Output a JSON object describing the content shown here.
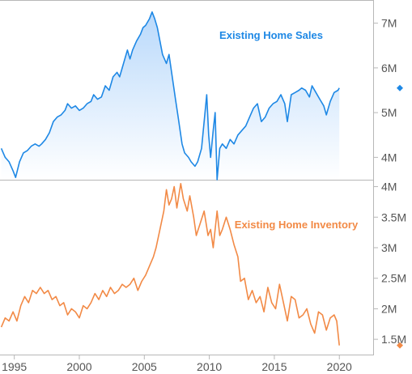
{
  "colors": {
    "sales": "#1e88e5",
    "sales_fill_top": "#b9d9fb",
    "sales_fill_bottom": "#ffffff",
    "inventory": "#f28a46",
    "grid": "#b7b7b7",
    "axis_text": "#555555"
  },
  "chart_data": [
    {
      "type": "area",
      "title": "Existing Home Sales",
      "series": [
        {
          "name": "Existing Home Sales"
        }
      ],
      "y_tick_labels": [
        "4M",
        "5M",
        "6M",
        "7M"
      ],
      "y_ticks": [
        4.0,
        5.0,
        6.0,
        7.0
      ],
      "ylim": [
        3.5,
        7.5
      ],
      "last_value_marker": 5.55,
      "points": [
        [
          1994.0,
          4.2
        ],
        [
          1994.3,
          4.0
        ],
        [
          1994.6,
          3.9
        ],
        [
          1994.9,
          3.7
        ],
        [
          1995.1,
          3.55
        ],
        [
          1995.4,
          3.9
        ],
        [
          1995.7,
          4.1
        ],
        [
          1996.0,
          4.15
        ],
        [
          1996.3,
          4.25
        ],
        [
          1996.6,
          4.3
        ],
        [
          1996.9,
          4.25
        ],
        [
          1997.1,
          4.3
        ],
        [
          1997.4,
          4.4
        ],
        [
          1997.7,
          4.55
        ],
        [
          1998.0,
          4.8
        ],
        [
          1998.3,
          4.9
        ],
        [
          1998.6,
          4.95
        ],
        [
          1998.9,
          5.05
        ],
        [
          1999.1,
          5.2
        ],
        [
          1999.4,
          5.1
        ],
        [
          1999.7,
          5.15
        ],
        [
          2000.0,
          5.05
        ],
        [
          2000.3,
          5.1
        ],
        [
          2000.6,
          5.2
        ],
        [
          2000.9,
          5.25
        ],
        [
          2001.1,
          5.4
        ],
        [
          2001.4,
          5.3
        ],
        [
          2001.7,
          5.35
        ],
        [
          2002.0,
          5.6
        ],
        [
          2002.3,
          5.5
        ],
        [
          2002.6,
          5.8
        ],
        [
          2002.9,
          5.9
        ],
        [
          2003.1,
          5.8
        ],
        [
          2003.4,
          6.1
        ],
        [
          2003.7,
          6.4
        ],
        [
          2003.9,
          6.2
        ],
        [
          2004.1,
          6.4
        ],
        [
          2004.4,
          6.6
        ],
        [
          2004.7,
          6.75
        ],
        [
          2004.9,
          6.9
        ],
        [
          2005.1,
          6.95
        ],
        [
          2005.4,
          7.1
        ],
        [
          2005.6,
          7.25
        ],
        [
          2005.8,
          7.1
        ],
        [
          2006.0,
          6.9
        ],
        [
          2006.2,
          6.6
        ],
        [
          2006.4,
          6.3
        ],
        [
          2006.7,
          6.1
        ],
        [
          2006.9,
          6.3
        ],
        [
          2007.1,
          5.9
        ],
        [
          2007.4,
          5.3
        ],
        [
          2007.6,
          4.9
        ],
        [
          2007.9,
          4.3
        ],
        [
          2008.1,
          4.1
        ],
        [
          2008.4,
          4.0
        ],
        [
          2008.6,
          3.9
        ],
        [
          2008.9,
          3.8
        ],
        [
          2009.1,
          3.9
        ],
        [
          2009.4,
          4.2
        ],
        [
          2009.6,
          4.8
        ],
        [
          2009.8,
          5.4
        ],
        [
          2009.95,
          4.5
        ],
        [
          2010.1,
          4.0
        ],
        [
          2010.3,
          4.6
        ],
        [
          2010.45,
          5.0
        ],
        [
          2010.6,
          3.5
        ],
        [
          2010.8,
          4.2
        ],
        [
          2011.0,
          4.3
        ],
        [
          2011.3,
          4.2
        ],
        [
          2011.6,
          4.4
        ],
        [
          2011.9,
          4.3
        ],
        [
          2012.2,
          4.5
        ],
        [
          2012.5,
          4.6
        ],
        [
          2012.8,
          4.7
        ],
        [
          2013.1,
          4.9
        ],
        [
          2013.4,
          5.1
        ],
        [
          2013.7,
          5.2
        ],
        [
          2014.0,
          4.8
        ],
        [
          2014.3,
          4.9
        ],
        [
          2014.6,
          5.1
        ],
        [
          2014.9,
          5.2
        ],
        [
          2015.2,
          5.25
        ],
        [
          2015.5,
          5.4
        ],
        [
          2015.8,
          5.2
        ],
        [
          2016.0,
          4.8
        ],
        [
          2016.3,
          5.4
        ],
        [
          2016.6,
          5.45
        ],
        [
          2016.9,
          5.5
        ],
        [
          2017.1,
          5.55
        ],
        [
          2017.4,
          5.5
        ],
        [
          2017.7,
          5.35
        ],
        [
          2017.9,
          5.6
        ],
        [
          2018.2,
          5.45
        ],
        [
          2018.5,
          5.3
        ],
        [
          2018.8,
          5.15
        ],
        [
          2019.0,
          4.95
        ],
        [
          2019.3,
          5.25
        ],
        [
          2019.6,
          5.45
        ],
        [
          2019.9,
          5.5
        ],
        [
          2020.0,
          5.55
        ]
      ]
    },
    {
      "type": "line",
      "title": "Existing Home Inventory",
      "series": [
        {
          "name": "Existing Home Inventory"
        }
      ],
      "y_tick_labels": [
        "1.5M",
        "2M",
        "2.5M",
        "3M",
        "3.5M",
        "4M"
      ],
      "y_ticks": [
        1.5,
        2.0,
        2.5,
        3.0,
        3.5,
        4.0
      ],
      "ylim": [
        1.25,
        4.1
      ],
      "last_value_marker": 1.4,
      "points": [
        [
          1994.0,
          1.7
        ],
        [
          1994.3,
          1.85
        ],
        [
          1994.6,
          1.8
        ],
        [
          1994.9,
          1.95
        ],
        [
          1995.2,
          1.8
        ],
        [
          1995.5,
          2.05
        ],
        [
          1995.8,
          2.2
        ],
        [
          1996.1,
          2.1
        ],
        [
          1996.4,
          2.3
        ],
        [
          1996.7,
          2.25
        ],
        [
          1997.0,
          2.35
        ],
        [
          1997.3,
          2.25
        ],
        [
          1997.6,
          2.3
        ],
        [
          1997.9,
          2.15
        ],
        [
          1998.2,
          2.2
        ],
        [
          1998.5,
          2.05
        ],
        [
          1998.8,
          2.1
        ],
        [
          1999.1,
          1.9
        ],
        [
          1999.4,
          2.0
        ],
        [
          1999.7,
          1.95
        ],
        [
          2000.0,
          1.85
        ],
        [
          2000.3,
          2.05
        ],
        [
          2000.6,
          2.0
        ],
        [
          2000.9,
          2.1
        ],
        [
          2001.2,
          2.25
        ],
        [
          2001.5,
          2.15
        ],
        [
          2001.8,
          2.3
        ],
        [
          2002.1,
          2.2
        ],
        [
          2002.4,
          2.35
        ],
        [
          2002.7,
          2.25
        ],
        [
          2003.0,
          2.3
        ],
        [
          2003.3,
          2.4
        ],
        [
          2003.6,
          2.35
        ],
        [
          2003.9,
          2.4
        ],
        [
          2004.2,
          2.5
        ],
        [
          2004.5,
          2.3
        ],
        [
          2004.8,
          2.45
        ],
        [
          2005.1,
          2.55
        ],
        [
          2005.4,
          2.7
        ],
        [
          2005.7,
          2.85
        ],
        [
          2005.9,
          3.0
        ],
        [
          2006.2,
          3.3
        ],
        [
          2006.5,
          3.6
        ],
        [
          2006.7,
          3.95
        ],
        [
          2006.9,
          3.7
        ],
        [
          2007.1,
          3.8
        ],
        [
          2007.3,
          4.0
        ],
        [
          2007.5,
          3.65
        ],
        [
          2007.8,
          4.05
        ],
        [
          2008.0,
          3.8
        ],
        [
          2008.3,
          3.6
        ],
        [
          2008.5,
          3.85
        ],
        [
          2008.8,
          3.5
        ],
        [
          2009.0,
          3.2
        ],
        [
          2009.3,
          3.4
        ],
        [
          2009.6,
          3.6
        ],
        [
          2009.9,
          3.2
        ],
        [
          2010.1,
          3.3
        ],
        [
          2010.3,
          3.0
        ],
        [
          2010.6,
          3.6
        ],
        [
          2010.8,
          3.2
        ],
        [
          2011.0,
          3.3
        ],
        [
          2011.3,
          3.5
        ],
        [
          2011.6,
          3.3
        ],
        [
          2011.9,
          3.05
        ],
        [
          2012.2,
          2.85
        ],
        [
          2012.4,
          2.45
        ],
        [
          2012.7,
          2.5
        ],
        [
          2013.0,
          2.15
        ],
        [
          2013.3,
          2.3
        ],
        [
          2013.6,
          2.1
        ],
        [
          2013.9,
          2.2
        ],
        [
          2014.2,
          1.95
        ],
        [
          2014.5,
          2.35
        ],
        [
          2014.8,
          2.1
        ],
        [
          2015.1,
          2.0
        ],
        [
          2015.4,
          2.4
        ],
        [
          2015.7,
          2.1
        ],
        [
          2016.0,
          1.8
        ],
        [
          2016.3,
          2.2
        ],
        [
          2016.6,
          2.15
        ],
        [
          2016.9,
          1.85
        ],
        [
          2017.2,
          1.9
        ],
        [
          2017.5,
          2.0
        ],
        [
          2017.8,
          1.75
        ],
        [
          2018.1,
          1.6
        ],
        [
          2018.4,
          1.95
        ],
        [
          2018.7,
          1.9
        ],
        [
          2019.0,
          1.65
        ],
        [
          2019.3,
          1.85
        ],
        [
          2019.6,
          1.9
        ],
        [
          2019.8,
          1.8
        ],
        [
          2020.0,
          1.4
        ]
      ]
    }
  ],
  "x_axis": {
    "tick_labels": [
      "1995",
      "2000",
      "2005",
      "2010",
      "2015",
      "2020"
    ],
    "ticks": [
      1995,
      2000,
      2005,
      2010,
      2015,
      2020
    ],
    "xlim": [
      1993.9,
      2022.6
    ]
  }
}
